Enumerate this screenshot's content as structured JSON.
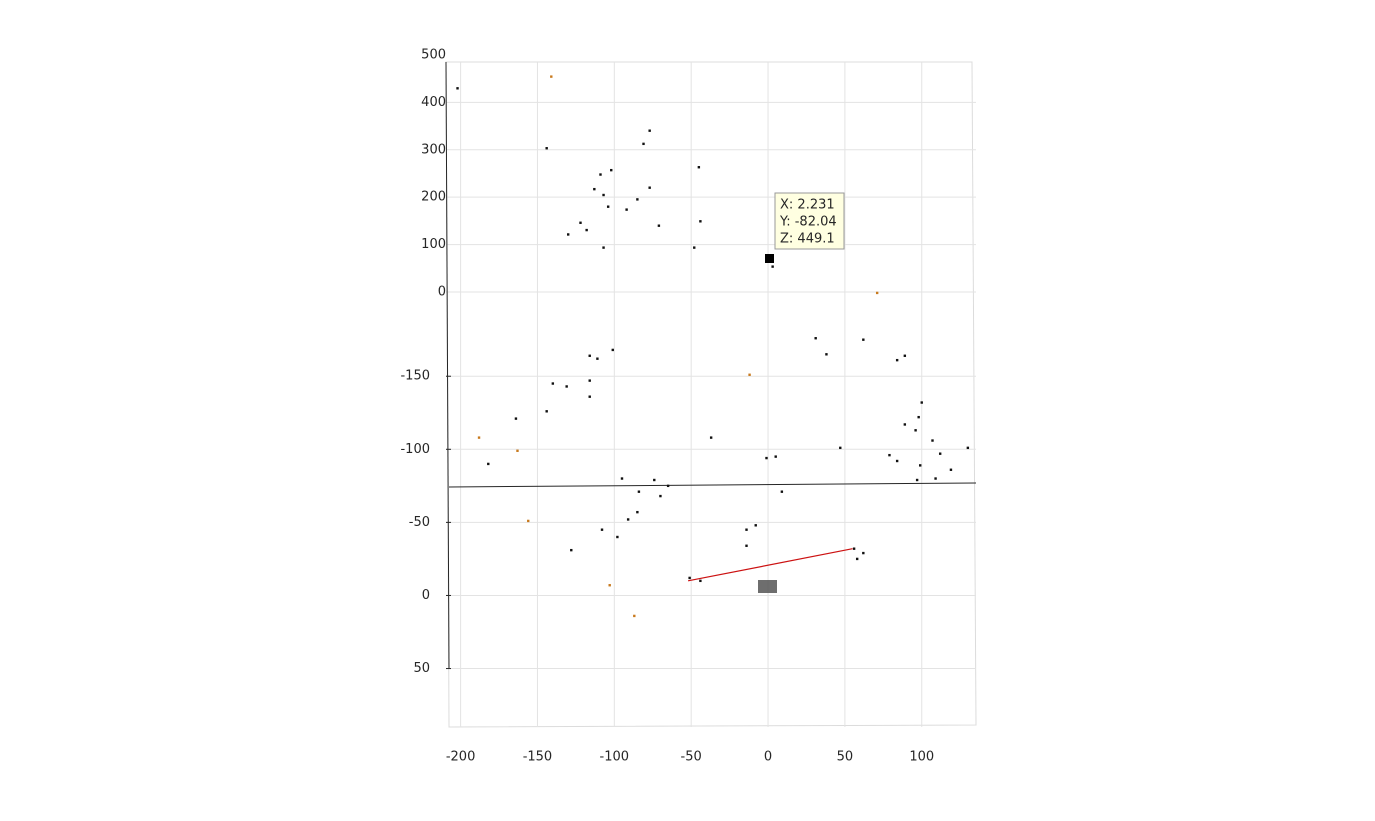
{
  "chart_data": {
    "type": "scatter",
    "xlim": [
      -209.5,
      135.3
    ],
    "xticks": [
      -200,
      -150,
      -100,
      -50,
      0,
      50,
      100
    ],
    "ylim": [
      -365,
      90
    ],
    "y_reversed": true,
    "yticks": [
      -150,
      -100,
      -50,
      0,
      50
    ],
    "y2lim": [
      -918,
      500
    ],
    "y2ticks": [
      0,
      100,
      200,
      300,
      400,
      500
    ],
    "grid": true,
    "series": [
      {
        "color": "#111111",
        "x": [
          -202,
          -144,
          -77,
          -81,
          -45,
          -109,
          -102,
          -113,
          -107,
          -104,
          -77,
          -85,
          -92,
          -71,
          -44,
          -122,
          -118,
          -130,
          -107,
          -48,
          1,
          3,
          -101,
          -116,
          -111,
          31,
          62,
          38,
          84,
          89,
          -140,
          -131,
          -116,
          -116,
          -144,
          -164,
          100,
          98,
          96,
          107,
          89,
          79,
          84,
          112,
          99,
          119,
          130,
          109,
          97,
          -182,
          -37,
          -1,
          5,
          47,
          -95,
          -74,
          -65,
          -84,
          -70,
          9,
          -91,
          -85,
          -98,
          -108,
          -14,
          -8,
          -14,
          56,
          58,
          62,
          -51,
          -44,
          -128
        ],
        "values": [
          -347,
          -306,
          -318,
          -309,
          -293,
          -288,
          -291,
          -278,
          -274,
          -266,
          -279,
          -271,
          -264,
          -253,
          -256,
          -255,
          -250,
          -247,
          -238,
          -238,
          -231,
          -225,
          -168,
          -164,
          -162,
          -176,
          -175,
          -165,
          -161,
          -164,
          -145,
          -143,
          -147,
          -136,
          -126,
          -121,
          -132,
          -122,
          -113,
          -106,
          -117,
          -96,
          -92,
          -97,
          -89,
          -86,
          -101,
          -80,
          -79,
          -90,
          -108,
          -94,
          -95,
          -101,
          -80,
          -79,
          -75,
          -71,
          -68,
          -71,
          -52,
          -57,
          -40,
          -45,
          -45,
          -48,
          -34,
          -32,
          -25,
          -29,
          -12,
          -10,
          -31
        ]
      },
      {
        "color": "#c87a1e",
        "x": [
          -141,
          -156,
          -163,
          -188,
          -12,
          71,
          -87,
          -103
        ],
        "values": [
          -355,
          -51,
          -99,
          -108,
          -151,
          -207,
          14,
          -7
        ]
      }
    ],
    "trajectory": {
      "color": "#cc1111",
      "x": [
        -52,
        55
      ],
      "values": [
        -10,
        -32
      ]
    },
    "datatip": {
      "lines": [
        "X: 2.231",
        "Y: -82.04",
        "Z: 449.1"
      ]
    }
  }
}
